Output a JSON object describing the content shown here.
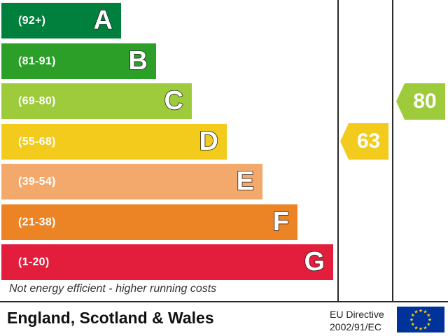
{
  "chart_data": {
    "type": "bar",
    "bands": [
      {
        "range": "(92+)",
        "letter": "A",
        "color": "#007f3d",
        "length": 0.27
      },
      {
        "range": "(81-91)",
        "letter": "B",
        "color": "#2c9f29",
        "length": 0.35
      },
      {
        "range": "(69-80)",
        "letter": "C",
        "color": "#9dcb3c",
        "length": 0.43
      },
      {
        "range": "(55-68)",
        "letter": "D",
        "color": "#f2cb1d",
        "length": 0.51
      },
      {
        "range": "(39-54)",
        "letter": "E",
        "color": "#f3a96c",
        "length": 0.59
      },
      {
        "range": "(21-38)",
        "letter": "F",
        "color": "#ec8425",
        "length": 0.67
      },
      {
        "range": "(1-20)",
        "letter": "G",
        "color": "#e31d3c",
        "length": 0.75
      }
    ],
    "current": {
      "value": 63,
      "band": "D",
      "color": "#f2cb1d"
    },
    "potential": {
      "value": 80,
      "band": "C",
      "color": "#9dcb3c"
    }
  },
  "footer_note": "Not energy efficient - higher running costs",
  "region": "England, Scotland & Wales",
  "directive_line1": "EU Directive",
  "directive_line2": "2002/91/EC"
}
